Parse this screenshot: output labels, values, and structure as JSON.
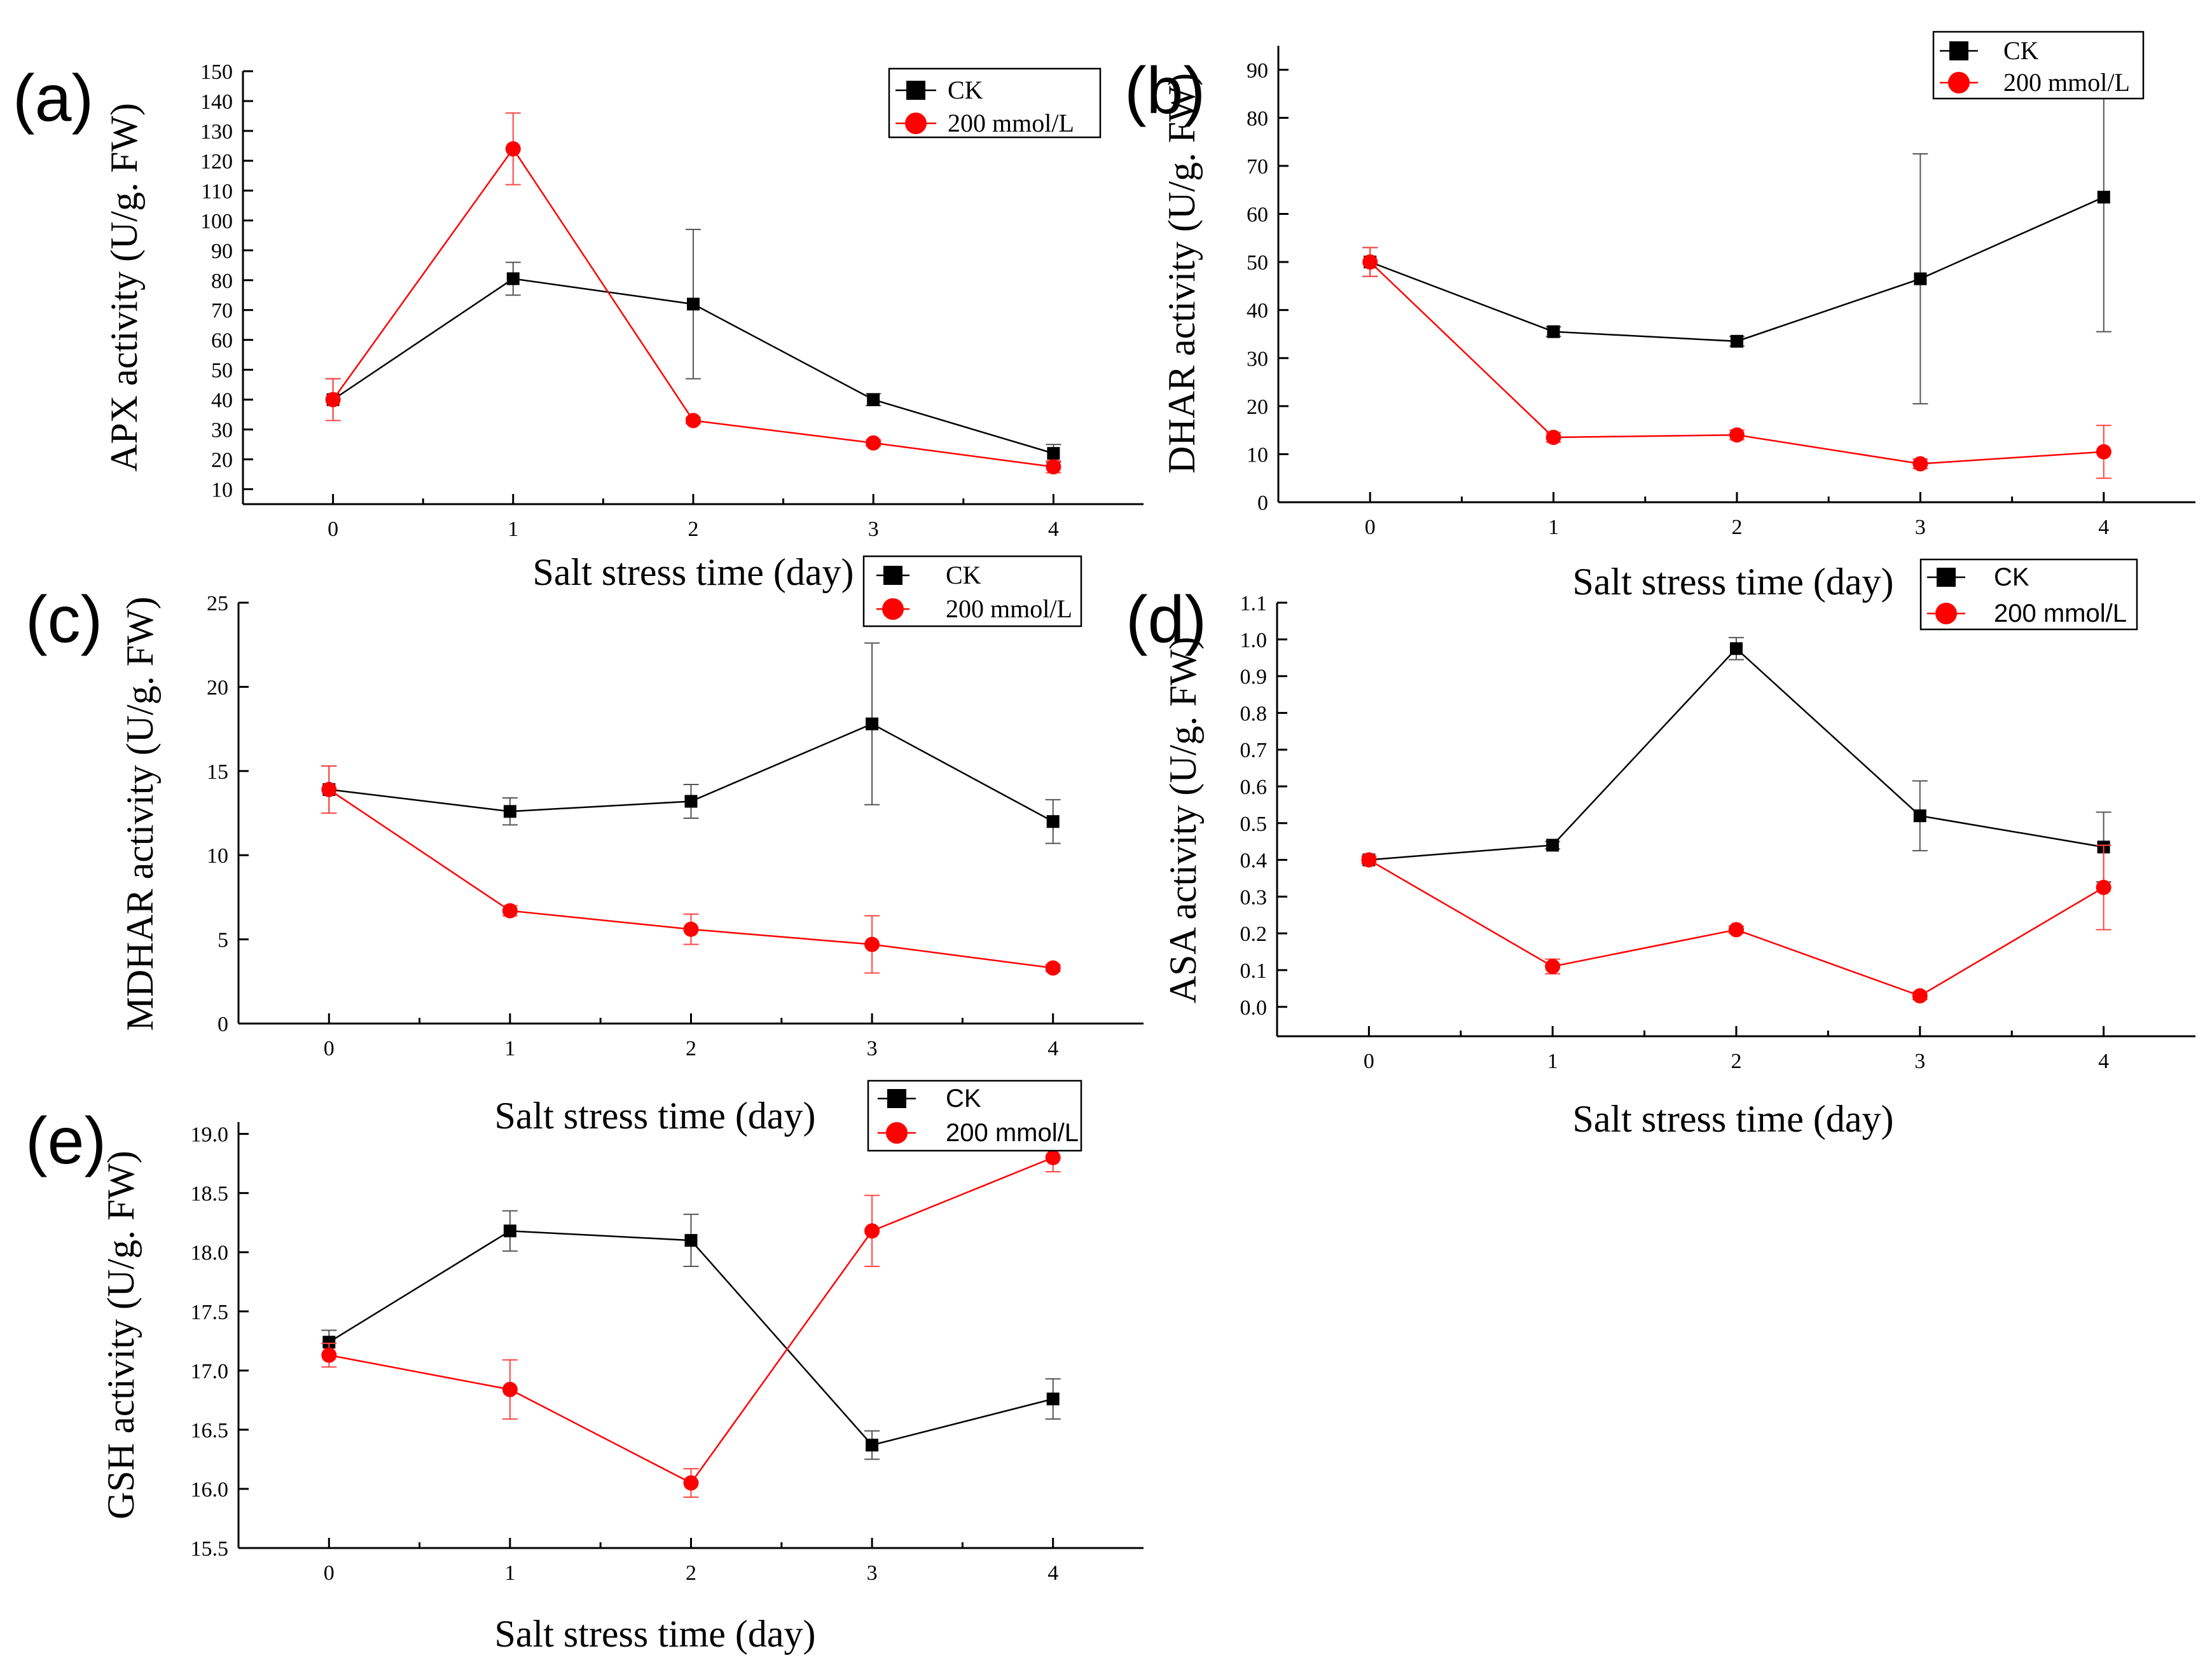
{
  "chart_data": [
    {
      "type": "line",
      "panel_label": "(a)",
      "xlabel": "Salt stress time (day)",
      "ylabel": "APX activity (U/g. FW)",
      "x": [
        0,
        1,
        2,
        3,
        4
      ],
      "xlim": [
        -0.5,
        4.5
      ],
      "ylim": [
        5,
        150
      ],
      "yticks": [
        10,
        20,
        30,
        40,
        50,
        60,
        70,
        80,
        90,
        100,
        110,
        120,
        130,
        140,
        150
      ],
      "legend_position": "top-right",
      "series": [
        {
          "name": "CK",
          "color": "#000000",
          "marker": "square",
          "values": [
            40,
            80.5,
            72,
            40,
            22
          ],
          "errors": [
            7,
            5.5,
            25,
            2,
            3
          ]
        },
        {
          "name": "200 mmol/L",
          "color": "#ff0000",
          "marker": "circle",
          "values": [
            40,
            124,
            33,
            25.5,
            17.5
          ],
          "errors": [
            7,
            12,
            1,
            1,
            2
          ]
        }
      ]
    },
    {
      "type": "line",
      "panel_label": "(b)",
      "xlabel": "Salt stress time (day)",
      "ylabel": "DHAR activity (U/g. FW)",
      "x": [
        0,
        1,
        2,
        3,
        4
      ],
      "xlim": [
        -0.5,
        4.5
      ],
      "ylim": [
        0,
        95
      ],
      "yticks": [
        0,
        10,
        20,
        30,
        40,
        50,
        60,
        70,
        80,
        90
      ],
      "legend_position": "top-right",
      "series": [
        {
          "name": "CK",
          "color": "#000000",
          "marker": "square",
          "values": [
            50,
            35.5,
            33.5,
            46.5,
            63.5
          ],
          "errors": [
            3,
            1,
            1,
            26,
            28
          ]
        },
        {
          "name": "200 mmol/L",
          "color": "#ff0000",
          "marker": "circle",
          "values": [
            50,
            13.5,
            14,
            8,
            10.5
          ],
          "errors": [
            3,
            1,
            1,
            1,
            5.5
          ]
        }
      ]
    },
    {
      "type": "line",
      "panel_label": "(c)",
      "xlabel": "Salt stress time (day)",
      "ylabel": "MDHAR activity (U/g. FW)",
      "x": [
        0,
        1,
        2,
        3,
        4
      ],
      "xlim": [
        -0.5,
        4.5
      ],
      "ylim": [
        0,
        25
      ],
      "yticks": [
        0,
        5,
        10,
        15,
        20,
        25
      ],
      "legend_position": "top-right",
      "series": [
        {
          "name": "CK",
          "color": "#000000",
          "marker": "square",
          "values": [
            13.9,
            12.6,
            13.2,
            17.8,
            12
          ],
          "errors": [
            1.4,
            0.8,
            1,
            4.8,
            1.3
          ]
        },
        {
          "name": "200 mmol/L",
          "color": "#ff0000",
          "marker": "circle",
          "values": [
            13.9,
            6.7,
            5.6,
            4.7,
            3.3
          ],
          "errors": [
            1.4,
            0.3,
            0.9,
            1.7,
            0.2
          ]
        }
      ]
    },
    {
      "type": "line",
      "panel_label": "(d)",
      "xlabel": "Salt stress time (day)",
      "ylabel": "ASA activity (U/g. FW)",
      "x": [
        0,
        1,
        2,
        3,
        4
      ],
      "xlim": [
        -0.5,
        4.5
      ],
      "ylim": [
        -0.08,
        1.1
      ],
      "yticks": [
        0.0,
        0.1,
        0.2,
        0.3,
        0.4,
        0.5,
        0.6,
        0.7,
        0.8,
        0.9,
        1.0,
        1.1
      ],
      "ytick_labels": [
        "0.0",
        "0.1",
        "0.2",
        "0.3",
        "0.4",
        "0.5",
        "0.6",
        "0.7",
        "0.8",
        "0.9",
        "1.0",
        "1.1"
      ],
      "legend_position": "top-right",
      "series": [
        {
          "name": "CK",
          "color": "#000000",
          "marker": "square",
          "values": [
            0.4,
            0.44,
            0.975,
            0.52,
            0.435
          ],
          "errors": [
            0.01,
            0.01,
            0.03,
            0.095,
            0.095
          ]
        },
        {
          "name": "200 mmol/L",
          "color": "#ff0000",
          "marker": "circle",
          "values": [
            0.4,
            0.11,
            0.21,
            0.03,
            0.325
          ],
          "errors": [
            0.01,
            0.02,
            0.01,
            0.01,
            0.115
          ]
        }
      ]
    },
    {
      "type": "line",
      "panel_label": "(e)",
      "xlabel": "Salt stress time (day)",
      "ylabel": "GSH activity (U/g. FW)",
      "x": [
        0,
        1,
        2,
        3,
        4
      ],
      "xlim": [
        -0.5,
        4.5
      ],
      "ylim": [
        15.5,
        19.1
      ],
      "yticks": [
        15.5,
        16.0,
        16.5,
        17.0,
        17.5,
        18.0,
        18.5,
        19.0
      ],
      "ytick_labels": [
        "15.5",
        "16.0",
        "16.5",
        "17.0",
        "17.5",
        "18.0",
        "18.5",
        "19.0"
      ],
      "legend_position": "top-right",
      "series": [
        {
          "name": "CK",
          "color": "#000000",
          "marker": "square",
          "values": [
            17.24,
            18.18,
            18.1,
            16.37,
            16.76
          ],
          "errors": [
            0.1,
            0.17,
            0.22,
            0.12,
            0.17
          ]
        },
        {
          "name": "200 mmol/L",
          "color": "#ff0000",
          "marker": "circle",
          "values": [
            17.13,
            16.84,
            16.05,
            18.18,
            18.8
          ],
          "errors": [
            0.1,
            0.25,
            0.12,
            0.3,
            0.12
          ]
        }
      ]
    }
  ]
}
